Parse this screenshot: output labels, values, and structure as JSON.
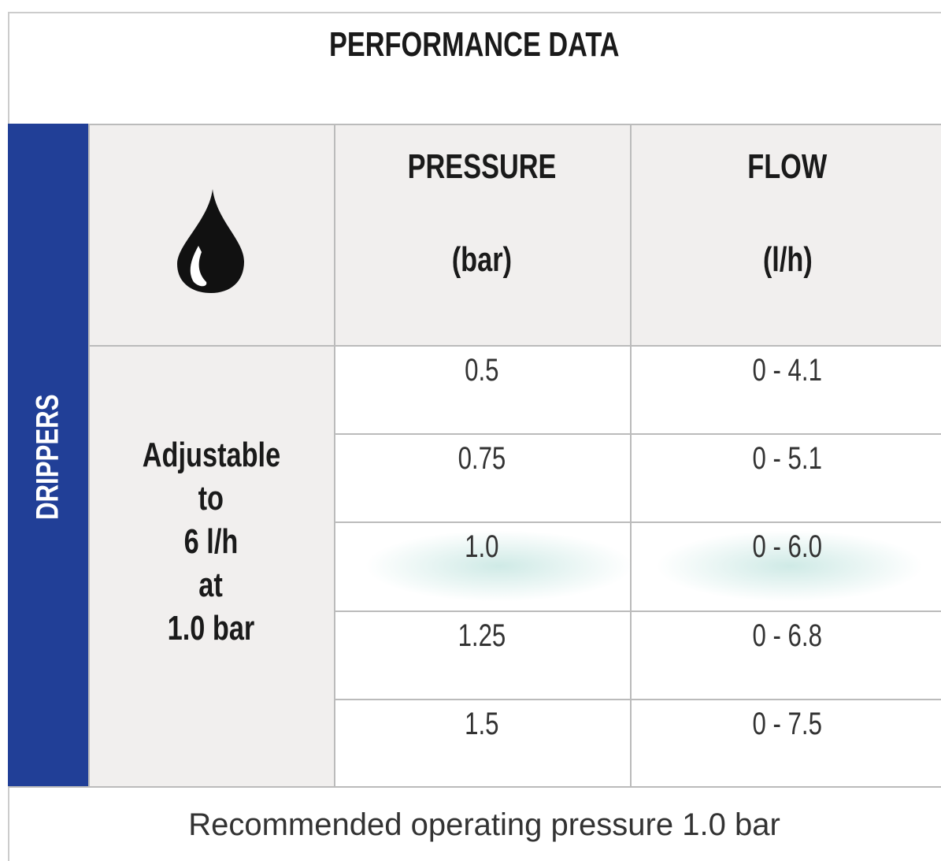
{
  "title": "PERFORMANCE DATA",
  "side_label": "DRIPPERS",
  "header": {
    "pressure": [
      "PRESSURE",
      "(bar)"
    ],
    "flow": [
      "FLOW",
      "(l/h)"
    ]
  },
  "description": [
    "Adjustable",
    "to",
    "6 l/h",
    "at",
    "1.0 bar"
  ],
  "table": {
    "rows": [
      [
        "0.5",
        "0 - 4.1"
      ],
      [
        "0.75",
        "0 - 5.1"
      ],
      [
        "1.0",
        "0 - 6.0"
      ],
      [
        "1.25",
        "0 - 6.8"
      ],
      [
        "1.5",
        "0 - 7.5"
      ]
    ],
    "highlight_row": 2
  },
  "footer": "Recommended operating pressure 1.0 bar"
}
